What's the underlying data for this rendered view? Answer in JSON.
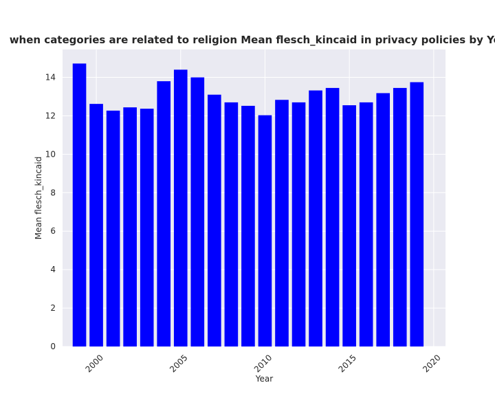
{
  "chart_data": {
    "type": "bar",
    "title": "when categories are related to religion Mean flesch_kincaid in privacy policies by Year",
    "xlabel": "Year",
    "ylabel": "Mean flesch_kincaid",
    "x": [
      1999,
      2000,
      2001,
      2002,
      2003,
      2004,
      2005,
      2006,
      2007,
      2008,
      2009,
      2010,
      2011,
      2012,
      2013,
      2014,
      2015,
      2016,
      2017,
      2018,
      2019
    ],
    "values": [
      14.72,
      12.62,
      12.27,
      12.44,
      12.37,
      13.8,
      14.4,
      14.0,
      13.1,
      12.7,
      12.52,
      12.03,
      12.83,
      12.7,
      13.32,
      13.45,
      12.55,
      12.7,
      13.18,
      13.45,
      13.75
    ],
    "xlim": [
      1998,
      2020.7
    ],
    "ylim": [
      0,
      15.45
    ],
    "xticks": [
      "2000",
      "2005",
      "2010",
      "2015",
      "2020"
    ],
    "yticks": [
      "0",
      "2",
      "4",
      "6",
      "8",
      "10",
      "12",
      "14"
    ],
    "bar_color": "#0000ff",
    "background_color": "#eaeaf2",
    "grid_color": "#ffffff",
    "grid": true
  }
}
